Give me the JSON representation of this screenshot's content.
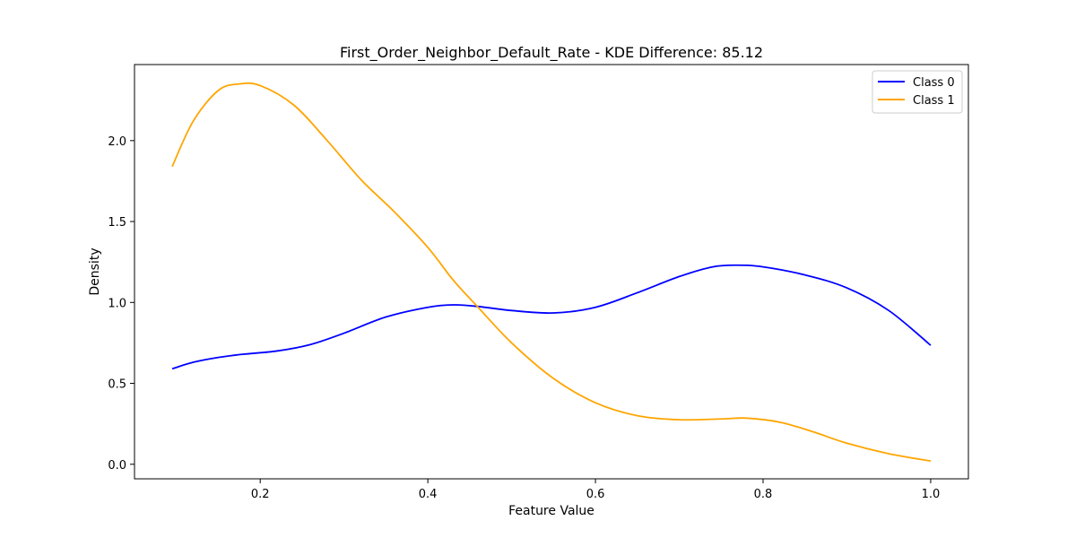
{
  "chart_data": {
    "type": "line",
    "title": "First_Order_Neighbor_Default_Rate - KDE Difference: 85.12",
    "xlabel": "Feature Value",
    "ylabel": "Density",
    "xlim": [
      0.05,
      1.045
    ],
    "ylim": [
      -0.09,
      2.47
    ],
    "x_ticks": [
      0.2,
      0.4,
      0.6,
      0.8,
      1.0
    ],
    "x_tick_labels": [
      "0.2",
      "0.4",
      "0.6",
      "0.8",
      "1.0"
    ],
    "y_ticks": [
      0.0,
      0.5,
      1.0,
      1.5,
      2.0
    ],
    "y_tick_labels": [
      "0.0",
      "0.5",
      "1.0",
      "1.5",
      "2.0"
    ],
    "grid": false,
    "legend_position": "top-right",
    "series": [
      {
        "name": "Class 0",
        "color": "#0000ff",
        "points": [
          [
            0.095,
            0.59
          ],
          [
            0.12,
            0.63
          ],
          [
            0.15,
            0.66
          ],
          [
            0.18,
            0.68
          ],
          [
            0.22,
            0.7
          ],
          [
            0.26,
            0.74
          ],
          [
            0.3,
            0.81
          ],
          [
            0.35,
            0.91
          ],
          [
            0.4,
            0.97
          ],
          [
            0.43,
            0.985
          ],
          [
            0.46,
            0.975
          ],
          [
            0.5,
            0.95
          ],
          [
            0.55,
            0.935
          ],
          [
            0.6,
            0.97
          ],
          [
            0.65,
            1.06
          ],
          [
            0.7,
            1.16
          ],
          [
            0.74,
            1.22
          ],
          [
            0.77,
            1.23
          ],
          [
            0.8,
            1.22
          ],
          [
            0.85,
            1.17
          ],
          [
            0.9,
            1.09
          ],
          [
            0.95,
            0.95
          ],
          [
            1.0,
            0.735
          ]
        ]
      },
      {
        "name": "Class 1",
        "color": "#ffa500",
        "points": [
          [
            0.095,
            1.84
          ],
          [
            0.12,
            2.12
          ],
          [
            0.15,
            2.31
          ],
          [
            0.175,
            2.35
          ],
          [
            0.2,
            2.34
          ],
          [
            0.24,
            2.22
          ],
          [
            0.28,
            2.0
          ],
          [
            0.32,
            1.76
          ],
          [
            0.36,
            1.56
          ],
          [
            0.4,
            1.34
          ],
          [
            0.43,
            1.14
          ],
          [
            0.46,
            0.97
          ],
          [
            0.5,
            0.75
          ],
          [
            0.55,
            0.53
          ],
          [
            0.6,
            0.38
          ],
          [
            0.65,
            0.3
          ],
          [
            0.7,
            0.275
          ],
          [
            0.75,
            0.28
          ],
          [
            0.78,
            0.285
          ],
          [
            0.82,
            0.26
          ],
          [
            0.86,
            0.2
          ],
          [
            0.9,
            0.13
          ],
          [
            0.95,
            0.065
          ],
          [
            1.0,
            0.02
          ]
        ]
      }
    ]
  }
}
